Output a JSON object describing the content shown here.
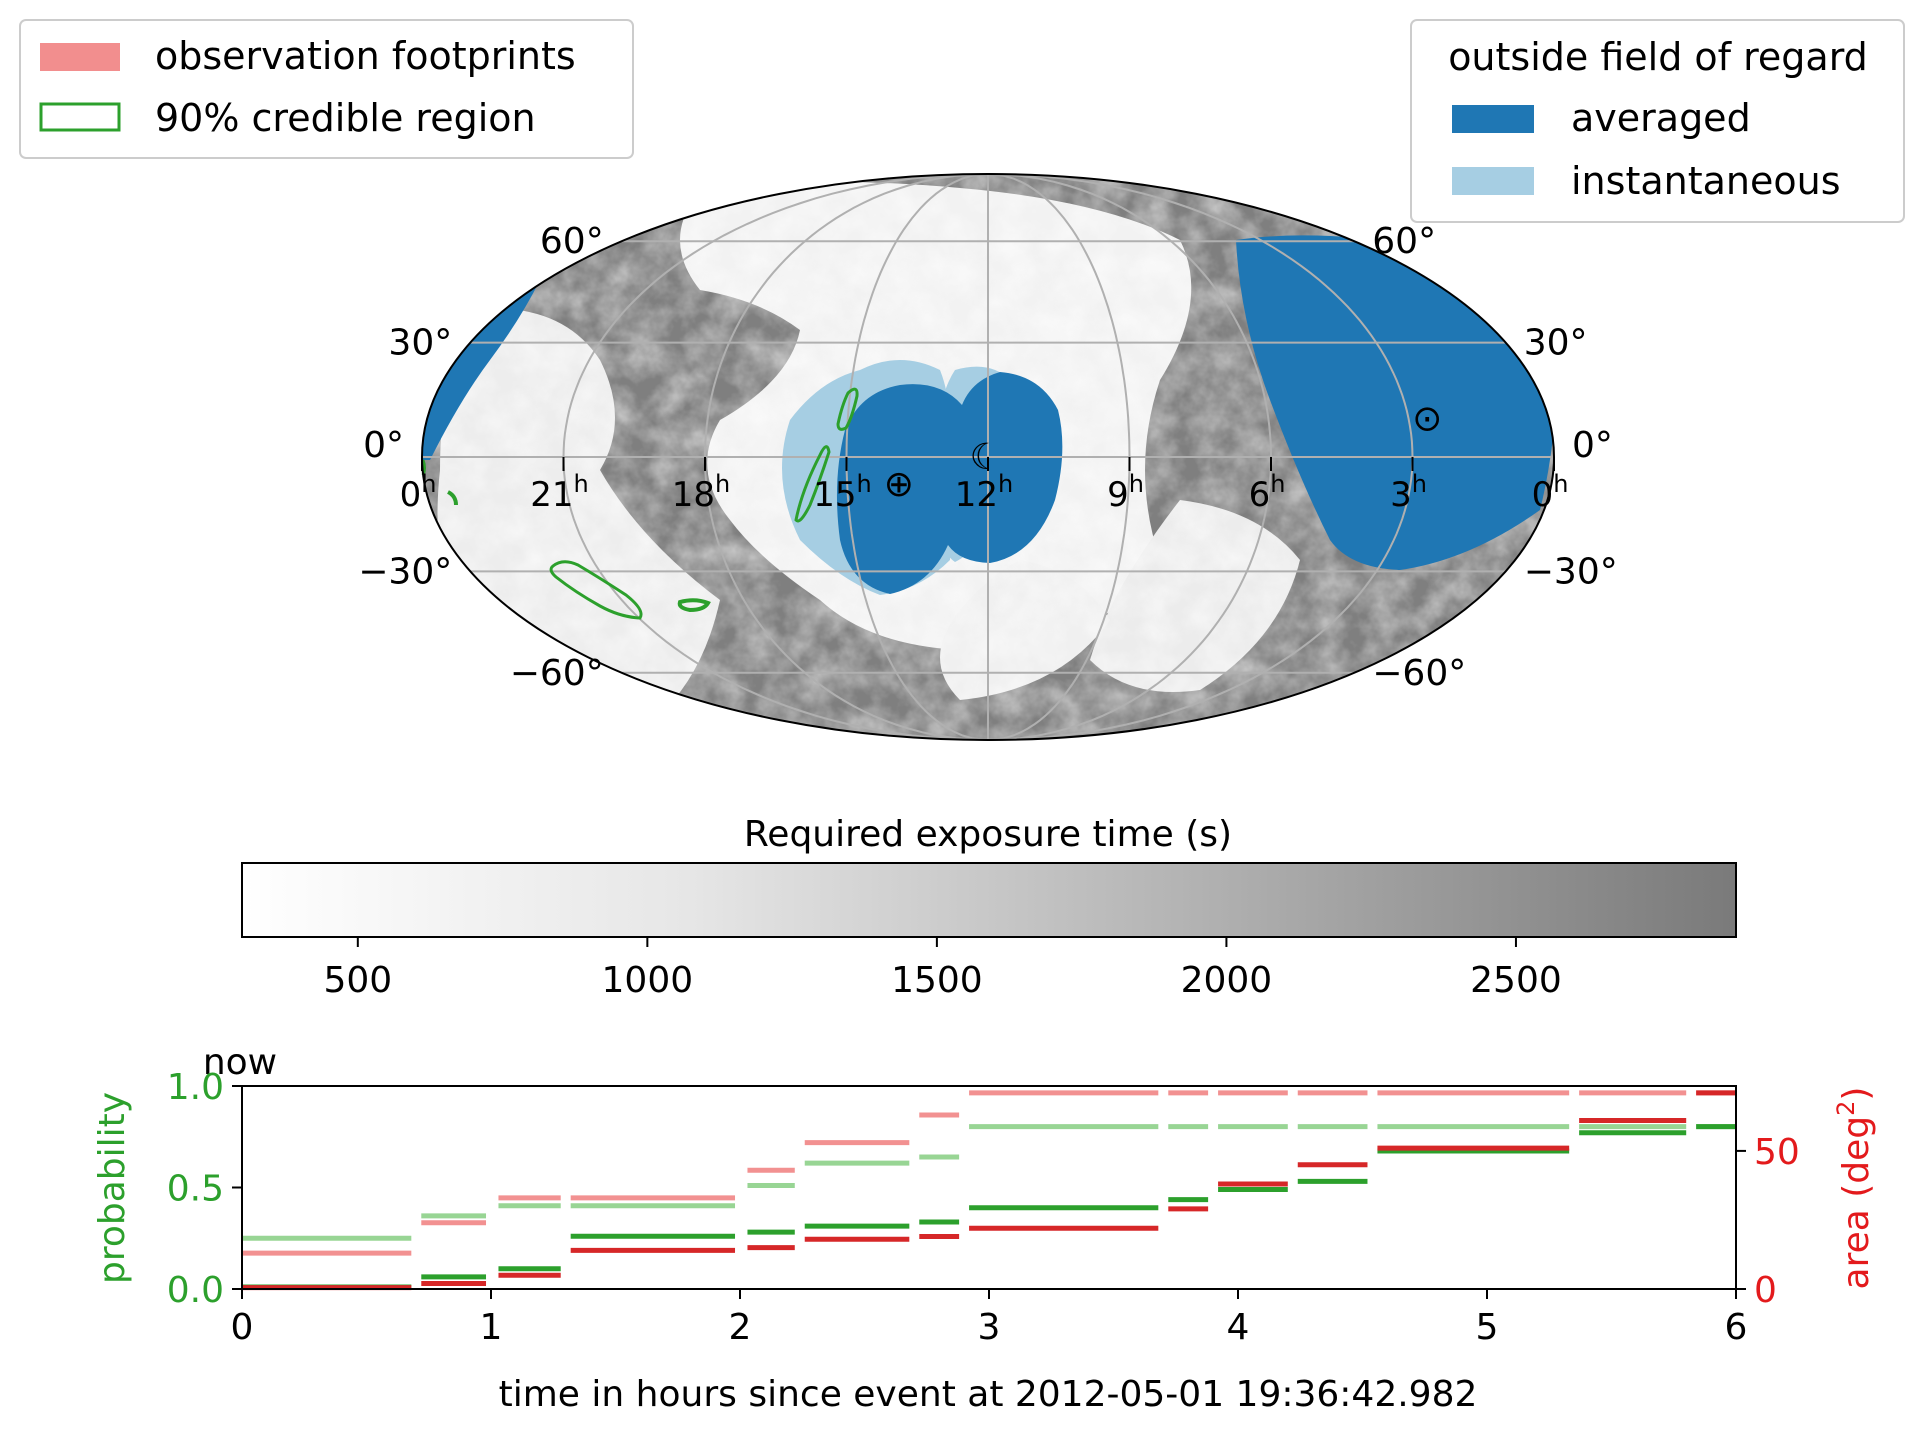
{
  "colors": {
    "averaged": "#1f77b4",
    "instantaneous": "#a6cee3",
    "footprints": "#f28e8e",
    "credible_region": "#2ca02c",
    "prob_light": "#98d594",
    "prob_dark": "#2ca02c",
    "area_light": "#f29191",
    "area_dark": "#d62728",
    "grid": "#b0b0b0",
    "sky_dark": "#7f7f7f"
  },
  "legend_left": {
    "items": [
      {
        "label": "observation footprints",
        "kind": "patch",
        "color": "#f28e8e"
      },
      {
        "label": "90% credible region",
        "kind": "outline",
        "color": "#2ca02c"
      }
    ]
  },
  "legend_right": {
    "title": "outside field of regard",
    "items": [
      {
        "label": "averaged",
        "color": "#1f77b4"
      },
      {
        "label": "instantaneous",
        "color": "#a6cee3"
      }
    ]
  },
  "sky_map": {
    "projection": "mollweide",
    "ra_labels": [
      {
        "hours": 0,
        "label": "0",
        "sup": "h"
      },
      {
        "hours": 21,
        "label": "21",
        "sup": "h"
      },
      {
        "hours": 18,
        "label": "18",
        "sup": "h"
      },
      {
        "hours": 15,
        "label": "15",
        "sup": "h"
      },
      {
        "hours": 12,
        "label": "12",
        "sup": "h"
      },
      {
        "hours": 9,
        "label": "9",
        "sup": "h"
      },
      {
        "hours": 6,
        "label": "6",
        "sup": "h"
      },
      {
        "hours": 3,
        "label": "3",
        "sup": "h"
      },
      {
        "hours": 0,
        "label": "0",
        "sup": "h"
      }
    ],
    "dec_labels": [
      "60°",
      "30°",
      "0°",
      "−30°",
      "−60°"
    ],
    "dec_values": [
      60,
      30,
      0,
      -30,
      -60
    ],
    "markers": [
      {
        "name": "sun",
        "symbol": "⊙",
        "ra_hours": 2.6,
        "dec": 10
      },
      {
        "name": "moon",
        "symbol": "☾",
        "ra_hours": 12.05,
        "dec": 0
      },
      {
        "name": "earth",
        "symbol": "⊕",
        "ra_hours": 13.9,
        "dec": -7
      }
    ]
  },
  "colorbar": {
    "title": "Required exposure time (s)",
    "min": 300,
    "max": 2880,
    "ticks": [
      500,
      1000,
      1500,
      2000,
      2500
    ]
  },
  "chart_data": {
    "type": "line",
    "title": "",
    "now_label": "now",
    "xlabel": "time in hours since event at 2012-05-01 19:36:42.982",
    "ylabel_left": "probability",
    "ylabel_right": "area (deg²)",
    "ylabel_right_text": "area (deg",
    "ylabel_right_sup": "2",
    "ylabel_right_close": ")",
    "xlim": [
      0,
      6
    ],
    "ylim_left": [
      0,
      1
    ],
    "ylim_right": [
      0,
      73.5
    ],
    "xticks": [
      0,
      1,
      2,
      3,
      4,
      5,
      6
    ],
    "yticks_left": [
      "0.0",
      "0.5",
      "1.0"
    ],
    "yticks_left_values": [
      0,
      0.5,
      1
    ],
    "yticks_right": [
      "0",
      "50"
    ],
    "yticks_right_values": [
      0,
      50
    ],
    "series": [
      {
        "name": "probability (instantaneous)",
        "axis": "left",
        "color": "#98d594",
        "segments": [
          [
            0,
            0.68,
            0.25
          ],
          [
            0.72,
            0.98,
            0.36
          ],
          [
            1.03,
            1.28,
            0.41
          ],
          [
            1.32,
            1.98,
            0.41
          ],
          [
            2.03,
            2.22,
            0.51
          ],
          [
            2.26,
            2.68,
            0.62
          ],
          [
            2.72,
            2.88,
            0.65
          ],
          [
            2.92,
            3.68,
            0.8
          ],
          [
            3.72,
            3.88,
            0.8
          ],
          [
            3.92,
            4.2,
            0.8
          ],
          [
            4.24,
            4.52,
            0.8
          ],
          [
            4.56,
            5.33,
            0.8
          ],
          [
            5.37,
            5.8,
            0.8
          ],
          [
            5.84,
            6,
            0.8
          ]
        ]
      },
      {
        "name": "probability (cumulative)",
        "axis": "left",
        "color": "#2ca02c",
        "segments": [
          [
            0,
            0.68,
            0.01
          ],
          [
            0.72,
            0.98,
            0.06
          ],
          [
            1.03,
            1.28,
            0.1
          ],
          [
            1.32,
            1.98,
            0.26
          ],
          [
            2.03,
            2.22,
            0.28
          ],
          [
            2.26,
            2.68,
            0.31
          ],
          [
            2.72,
            2.88,
            0.33
          ],
          [
            2.92,
            3.68,
            0.4
          ],
          [
            3.72,
            3.88,
            0.44
          ],
          [
            3.92,
            4.2,
            0.49
          ],
          [
            4.24,
            4.52,
            0.53
          ],
          [
            4.56,
            5.33,
            0.68
          ],
          [
            5.37,
            5.8,
            0.77
          ],
          [
            5.84,
            6,
            0.8
          ]
        ]
      },
      {
        "name": "area (instantaneous)",
        "axis": "right",
        "color": "#f29191",
        "segments": [
          [
            0,
            0.68,
            13
          ],
          [
            0.72,
            0.98,
            24
          ],
          [
            1.03,
            1.28,
            33
          ],
          [
            1.32,
            1.98,
            33
          ],
          [
            2.03,
            2.22,
            43
          ],
          [
            2.26,
            2.68,
            53
          ],
          [
            2.72,
            2.88,
            63
          ],
          [
            2.92,
            3.68,
            71
          ],
          [
            3.72,
            3.88,
            71
          ],
          [
            3.92,
            4.2,
            71
          ],
          [
            4.24,
            4.52,
            71
          ],
          [
            4.56,
            5.33,
            71
          ],
          [
            5.37,
            5.8,
            71
          ],
          [
            5.84,
            6,
            71
          ]
        ]
      },
      {
        "name": "area (cumulative)",
        "axis": "right",
        "color": "#d62728",
        "segments": [
          [
            0,
            0.68,
            0.5
          ],
          [
            0.72,
            0.98,
            2
          ],
          [
            1.03,
            1.28,
            5
          ],
          [
            1.32,
            1.98,
            14
          ],
          [
            2.03,
            2.22,
            15
          ],
          [
            2.26,
            2.68,
            18
          ],
          [
            2.72,
            2.88,
            19
          ],
          [
            2.92,
            3.68,
            22
          ],
          [
            3.72,
            3.88,
            29
          ],
          [
            3.92,
            4.2,
            38
          ],
          [
            4.24,
            4.52,
            45
          ],
          [
            4.56,
            5.33,
            51
          ],
          [
            5.37,
            5.8,
            61
          ],
          [
            5.84,
            6,
            71
          ]
        ]
      }
    ]
  }
}
